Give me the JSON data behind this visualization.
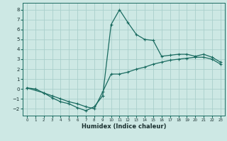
{
  "xlabel": "Humidex (Indice chaleur)",
  "ylabel": "",
  "xlim": [
    -0.5,
    23.5
  ],
  "ylim": [
    -2.7,
    8.7
  ],
  "xticks": [
    0,
    1,
    2,
    3,
    4,
    5,
    6,
    7,
    8,
    9,
    10,
    11,
    12,
    13,
    14,
    15,
    16,
    17,
    18,
    19,
    20,
    21,
    22,
    23
  ],
  "yticks": [
    -2,
    -1,
    0,
    1,
    2,
    3,
    4,
    5,
    6,
    7,
    8
  ],
  "bg_color": "#cde8e4",
  "grid_color": "#aacfcb",
  "line_color": "#1a6b60",
  "curve1_x": [
    0,
    1,
    2,
    3,
    4,
    5,
    6,
    7,
    8,
    9,
    10,
    11,
    12,
    13,
    14,
    15,
    16,
    17,
    18,
    19,
    20,
    21,
    22,
    23
  ],
  "curve1_y": [
    0.1,
    0.0,
    -0.4,
    -0.9,
    -1.3,
    -1.5,
    -1.9,
    -2.2,
    -1.8,
    -0.7,
    6.5,
    8.0,
    6.7,
    5.5,
    5.0,
    4.9,
    3.3,
    3.4,
    3.5,
    3.5,
    3.3,
    3.5,
    3.2,
    2.7
  ],
  "curve2_x": [
    0,
    2,
    3,
    4,
    5,
    6,
    7,
    8,
    9,
    10,
    11,
    12,
    13,
    14,
    15,
    16,
    17,
    18,
    19,
    20,
    21,
    22,
    23
  ],
  "curve2_y": [
    0.1,
    -0.4,
    -0.7,
    -1.0,
    -1.3,
    -1.5,
    -1.8,
    -2.0,
    -0.3,
    1.5,
    1.5,
    1.7,
    2.0,
    2.2,
    2.5,
    2.7,
    2.9,
    3.0,
    3.1,
    3.2,
    3.2,
    3.0,
    2.5
  ],
  "marker": "+",
  "markersize": 3.5,
  "linewidth": 0.9,
  "xlabel_fontsize": 6.0,
  "tick_fontsize_x": 4.0,
  "tick_fontsize_y": 5.0
}
